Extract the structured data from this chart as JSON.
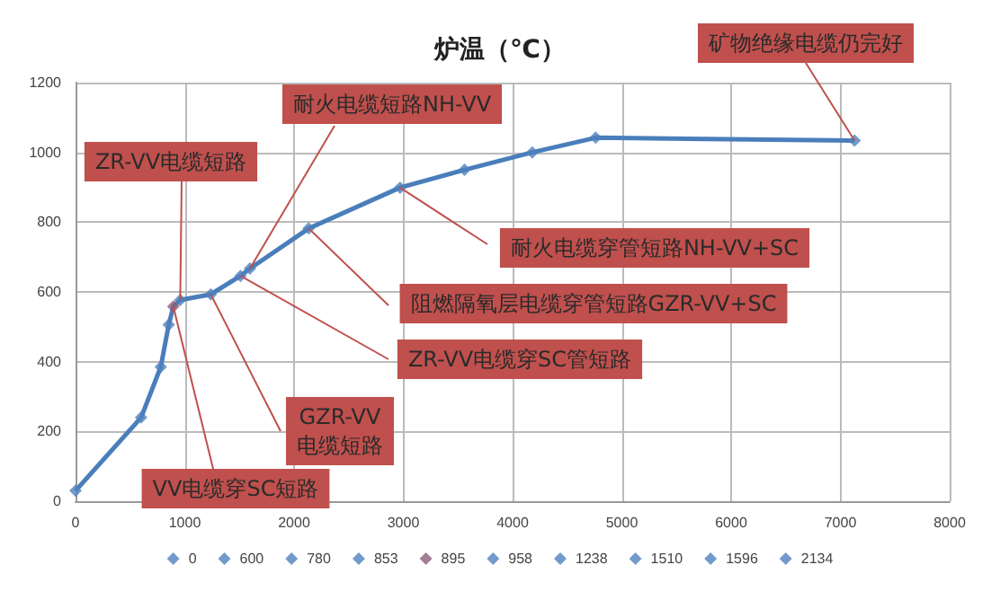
{
  "chart_data": {
    "type": "line",
    "title": "炉温（℃）",
    "x": [
      0,
      600,
      780,
      853,
      895,
      958,
      1238,
      1510,
      1596,
      2134,
      2970,
      3560,
      4180,
      4760,
      7130
    ],
    "series": [
      {
        "color": "#4a7ebb",
        "marker": "none",
        "values": [
          30,
          240,
          385,
          506,
          558,
          577,
          593,
          646,
          667,
          782,
          899,
          950,
          1000,
          1042,
          1034
        ]
      },
      {
        "type": "scatter",
        "name": "0",
        "color": "#4f81bd",
        "x": [
          0
        ],
        "values": [
          30
        ]
      },
      {
        "type": "scatter",
        "name": "600",
        "color": "#4f81bd",
        "x": [
          600
        ],
        "values": [
          240
        ]
      },
      {
        "type": "scatter",
        "name": "780",
        "color": "#4f81bd",
        "x": [
          780
        ],
        "values": [
          385
        ]
      },
      {
        "type": "scatter",
        "name": "853",
        "color": "#4f81bd",
        "x": [
          853
        ],
        "values": [
          506
        ]
      },
      {
        "type": "scatter",
        "name": "895",
        "color": "#8a5f7c",
        "x": [
          895
        ],
        "values": [
          558
        ]
      },
      {
        "type": "scatter",
        "name": "958",
        "color": "#4f81bd",
        "x": [
          958
        ],
        "values": [
          577
        ]
      },
      {
        "type": "scatter",
        "name": "1238",
        "color": "#4f81bd",
        "x": [
          1238
        ],
        "values": [
          593
        ]
      },
      {
        "type": "scatter",
        "name": "1510",
        "color": "#4f81bd",
        "x": [
          1510
        ],
        "values": [
          646
        ]
      },
      {
        "type": "scatter",
        "name": "1596",
        "color": "#4f81bd",
        "x": [
          1596
        ],
        "values": [
          667
        ]
      },
      {
        "type": "scatter",
        "name": "2134",
        "color": "#4f81bd",
        "x": [
          2134
        ],
        "values": [
          782
        ]
      },
      {
        "type": "scatter",
        "color": "#4f81bd",
        "x": [
          2970
        ],
        "values": [
          899
        ]
      },
      {
        "type": "scatter",
        "color": "#4f81bd",
        "x": [
          3560
        ],
        "values": [
          950
        ]
      },
      {
        "type": "scatter",
        "color": "#4f81bd",
        "x": [
          4180
        ],
        "values": [
          1000
        ]
      },
      {
        "type": "scatter",
        "color": "#4f81bd",
        "x": [
          4760
        ],
        "values": [
          1042
        ]
      },
      {
        "type": "scatter",
        "color": "#4f81bd",
        "x": [
          7130
        ],
        "values": [
          1034
        ]
      }
    ],
    "marker": "diamond",
    "xlim": [
      0,
      8000
    ],
    "xticks": [
      0,
      1000,
      2000,
      3000,
      4000,
      5000,
      6000,
      7000,
      8000
    ],
    "ylim": [
      0,
      1200
    ],
    "yticks": [
      0,
      200,
      400,
      600,
      800,
      1000,
      1200
    ],
    "grid": true,
    "legend": "bottom",
    "annotations": [
      {
        "text": "矿物绝缘电缆仍完好",
        "x": 7130,
        "y": 1034
      },
      {
        "text": "耐火电缆短路NH-VV",
        "x": 1596,
        "y": 667
      },
      {
        "text": "ZR-VV电缆短路",
        "x": 958,
        "y": 577
      },
      {
        "text": "耐火电缆穿管短路NH-VV+SC",
        "x": 2970,
        "y": 899
      },
      {
        "text": "阻燃隔氧层电缆穿管短路GZR-VV+SC",
        "x": 2134,
        "y": 782
      },
      {
        "text": "ZR-VV电缆穿SC管短路",
        "x": 1510,
        "y": 646
      },
      {
        "text": "GZR-VV\n电缆短路",
        "x": 1238,
        "y": 593
      },
      {
        "text": "VV电缆穿SC短路",
        "x": 895,
        "y": 558
      }
    ]
  }
}
